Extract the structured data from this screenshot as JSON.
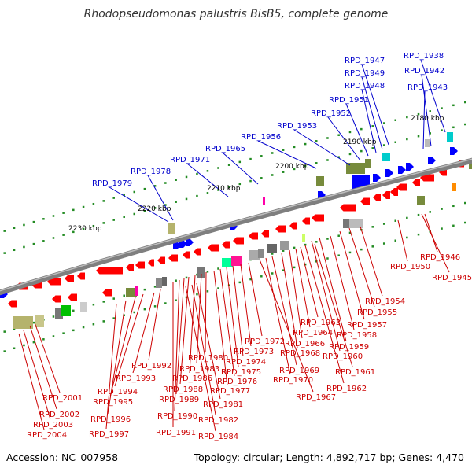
{
  "title": "Rhodopseudomonas palustris BisB5, complete genome",
  "accession": "Accession: NC_007958",
  "topology": "Topology: circular; Length: 4,892,717 bp; Genes: 4,470",
  "colors": {
    "forward_label": "#0000cc",
    "reverse_label": "#cc0000",
    "backbone": "#808080",
    "dots": "#228b22",
    "cds_reverse": "#ff0000",
    "cds_forward": "#0000ff"
  },
  "ticks": [
    "2180 kbp",
    "2190 kbp",
    "2200 kbp",
    "2210 kbp",
    "2220 kbp",
    "2230 kbp"
  ],
  "forward_genes": [
    "RPD_1938",
    "RPD_1942",
    "RPD_1943",
    "RPD_1947",
    "RPD_1949",
    "RPD_1948",
    "RPD_1951",
    "RPD_1952",
    "RPD_1953",
    "RPD_1956",
    "RPD_1965",
    "RPD_1971",
    "RPD_1978",
    "RPD_1979"
  ],
  "reverse_genes": [
    "RPD_1946",
    "RPD_1945",
    "RPD_1950",
    "RPD_1954",
    "RPD_1955",
    "RPD_1957",
    "RPD_1958",
    "RPD_1959",
    "RPD_1960",
    "RPD_1961",
    "RPD_1962",
    "RPD_1963",
    "RPD_1964",
    "RPD_1966",
    "RPD_1968",
    "RPD_1969",
    "RPD_1970",
    "RPD_1967",
    "RPD_1972",
    "RPD_1973",
    "RPD_1974",
    "RPD_1975",
    "RPD_1976",
    "RPD_1977",
    "RPD_1980",
    "RPD_1983",
    "RPD_1986",
    "RPD_1988",
    "RPD_1989",
    "RPD_1990",
    "RPD_1991",
    "RPD_1981",
    "RPD_1982",
    "RPD_1984",
    "RPD_1992",
    "RPD_1993",
    "RPD_1994",
    "RPD_1995",
    "RPD_1996",
    "RPD_1997",
    "RPD_2001",
    "RPD_2002",
    "RPD_2003",
    "RPD_2004"
  ]
}
